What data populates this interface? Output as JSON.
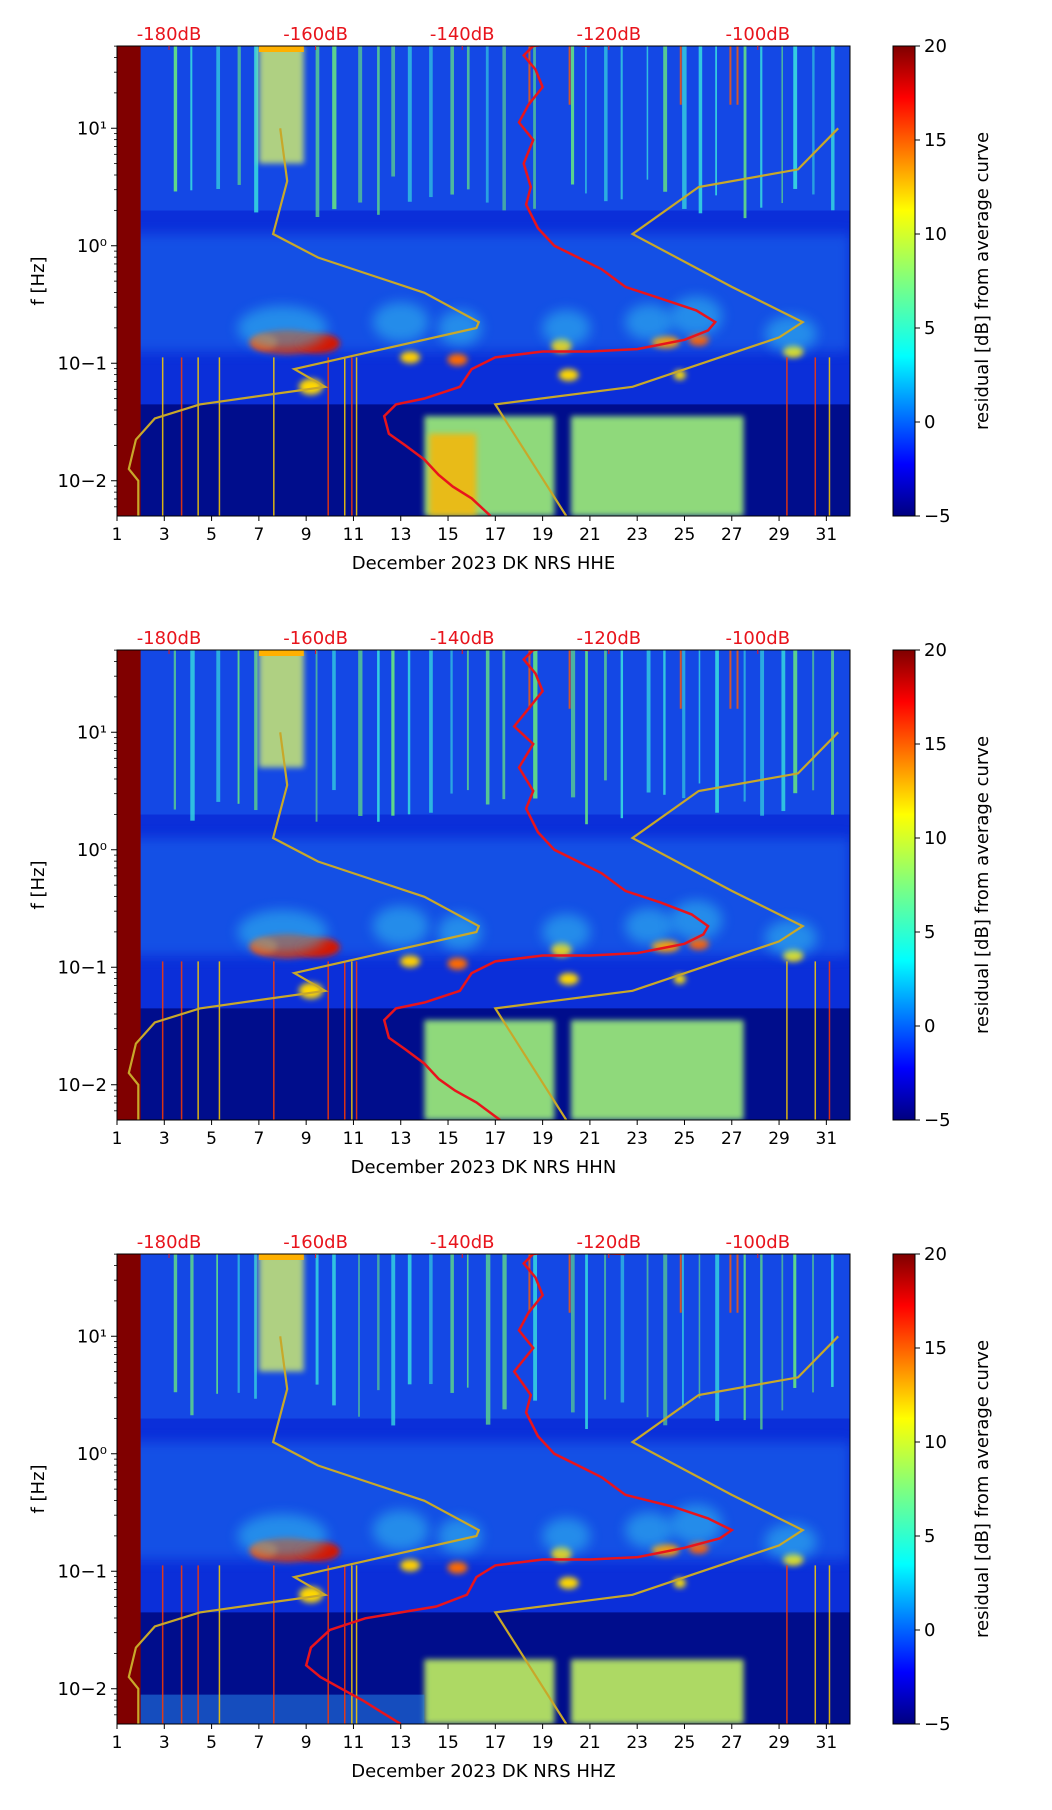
{
  "chart_data": [
    {
      "type": "heatmap",
      "channel": "HHE",
      "xlabel": "December 2023 DK NRS  HHE",
      "ylabel": "f [Hz]",
      "x_ticks": [
        "1",
        "3",
        "5",
        "7",
        "9",
        "11",
        "13",
        "15",
        "17",
        "19",
        "21",
        "23",
        "25",
        "27",
        "29",
        "31"
      ],
      "y_ticks": [
        "10−2",
        "10−1",
        "10⁰",
        "10¹"
      ],
      "top_axis_labels": [
        "-180dB",
        "-160dB",
        "-140dB",
        "-120dB",
        "-100dB"
      ],
      "colorbar": {
        "label": "residual [dB] from average curve",
        "ticks": [
          "−5",
          "0",
          "5",
          "10",
          "15",
          "20"
        ],
        "min": -5,
        "max": 20
      },
      "red_curve": [
        [
          16.8,
          -2.3
        ],
        [
          16,
          -2.15
        ],
        [
          15.2,
          -2.05
        ],
        [
          14.6,
          -1.95
        ],
        [
          14,
          -1.82
        ],
        [
          13.2,
          -1.7
        ],
        [
          12.5,
          -1.6
        ],
        [
          12.3,
          -1.45
        ],
        [
          12.8,
          -1.35
        ],
        [
          14,
          -1.3
        ],
        [
          15.5,
          -1.2
        ],
        [
          16,
          -1.05
        ],
        [
          17,
          -0.95
        ],
        [
          19,
          -0.9
        ],
        [
          21,
          -0.9
        ],
        [
          23,
          -0.88
        ],
        [
          25,
          -0.8
        ],
        [
          26,
          -0.72
        ],
        [
          26.3,
          -0.65
        ],
        [
          25.5,
          -0.55
        ],
        [
          24,
          -0.45
        ],
        [
          22.5,
          -0.35
        ],
        [
          21.5,
          -0.2
        ],
        [
          20.5,
          -0.1
        ],
        [
          19.5,
          0
        ],
        [
          18.8,
          0.15
        ],
        [
          18.3,
          0.35
        ],
        [
          18.5,
          0.5
        ],
        [
          18.2,
          0.7
        ],
        [
          18.6,
          0.9
        ],
        [
          18,
          1.05
        ],
        [
          18.4,
          1.2
        ],
        [
          19,
          1.35
        ],
        [
          18.7,
          1.5
        ],
        [
          18.2,
          1.62
        ],
        [
          18.6,
          1.7
        ],
        [
          19.5,
          1.72
        ],
        [
          21,
          1.7
        ]
      ],
      "yellow_curve": [
        [
          1.9,
          -2.3
        ],
        [
          1.9,
          -2.0
        ],
        [
          1.5,
          -1.9
        ],
        [
          1.8,
          -1.65
        ],
        [
          2.6,
          -1.47
        ],
        [
          4.5,
          -1.35
        ],
        [
          9.8,
          -1.2
        ],
        [
          8.5,
          -1.05
        ],
        [
          16.2,
          -0.7
        ],
        [
          16.3,
          -0.65
        ],
        [
          14,
          -0.4
        ],
        [
          9.5,
          -0.1
        ],
        [
          7.6,
          0.1
        ],
        [
          8.2,
          0.55
        ],
        [
          7.9,
          1.0
        ],
        [
          20,
          -2.3
        ],
        [
          17,
          -1.35
        ],
        [
          22.8,
          -1.2
        ],
        [
          29,
          -0.78
        ],
        [
          30,
          -0.65
        ],
        [
          27,
          -0.35
        ],
        [
          22.8,
          0.1
        ],
        [
          25.6,
          0.5
        ],
        [
          29.8,
          0.65
        ],
        [
          31.5,
          1.0
        ]
      ]
    },
    {
      "type": "heatmap",
      "channel": "HHN",
      "xlabel": "December 2023 DK NRS  HHN",
      "ylabel": "f [Hz]",
      "x_ticks": [
        "1",
        "3",
        "5",
        "7",
        "9",
        "11",
        "13",
        "15",
        "17",
        "19",
        "21",
        "23",
        "25",
        "27",
        "29",
        "31"
      ],
      "y_ticks": [
        "10−2",
        "10−1",
        "10⁰",
        "10¹"
      ],
      "top_axis_labels": [
        "-180dB",
        "-160dB",
        "-140dB",
        "-120dB",
        "-100dB"
      ],
      "colorbar": {
        "label": "residual [dB] from average curve",
        "ticks": [
          "−5",
          "0",
          "5",
          "10",
          "15",
          "20"
        ],
        "min": -5,
        "max": 20
      },
      "red_curve": [
        [
          17.2,
          -2.3
        ],
        [
          16.2,
          -2.15
        ],
        [
          15.3,
          -2.05
        ],
        [
          14.6,
          -1.95
        ],
        [
          14,
          -1.82
        ],
        [
          13.2,
          -1.7
        ],
        [
          12.5,
          -1.6
        ],
        [
          12.3,
          -1.45
        ],
        [
          12.8,
          -1.35
        ],
        [
          14,
          -1.3
        ],
        [
          15.5,
          -1.2
        ],
        [
          16,
          -1.05
        ],
        [
          17,
          -0.95
        ],
        [
          19,
          -0.9
        ],
        [
          21,
          -0.9
        ],
        [
          23,
          -0.88
        ],
        [
          25,
          -0.8
        ],
        [
          25.8,
          -0.72
        ],
        [
          26,
          -0.65
        ],
        [
          25.3,
          -0.55
        ],
        [
          24,
          -0.45
        ],
        [
          22.5,
          -0.35
        ],
        [
          21.5,
          -0.2
        ],
        [
          20.5,
          -0.1
        ],
        [
          19.5,
          0
        ],
        [
          18.8,
          0.15
        ],
        [
          18.3,
          0.35
        ],
        [
          18.6,
          0.5
        ],
        [
          18,
          0.7
        ],
        [
          18.6,
          0.9
        ],
        [
          17.8,
          1.05
        ],
        [
          18.4,
          1.2
        ],
        [
          19,
          1.35
        ],
        [
          18.7,
          1.5
        ],
        [
          18.2,
          1.62
        ],
        [
          18.6,
          1.7
        ],
        [
          19.5,
          1.72
        ],
        [
          21,
          1.7
        ]
      ],
      "yellow_curve": [
        [
          1.9,
          -2.3
        ],
        [
          1.9,
          -2.0
        ],
        [
          1.5,
          -1.9
        ],
        [
          1.8,
          -1.65
        ],
        [
          2.6,
          -1.47
        ],
        [
          4.5,
          -1.35
        ],
        [
          9.8,
          -1.2
        ],
        [
          8.5,
          -1.05
        ],
        [
          16.2,
          -0.7
        ],
        [
          16.3,
          -0.65
        ],
        [
          14,
          -0.4
        ],
        [
          9.5,
          -0.1
        ],
        [
          7.6,
          0.1
        ],
        [
          8.2,
          0.55
        ],
        [
          7.9,
          1.0
        ],
        [
          20,
          -2.3
        ],
        [
          17,
          -1.35
        ],
        [
          22.8,
          -1.2
        ],
        [
          29,
          -0.78
        ],
        [
          30,
          -0.65
        ],
        [
          27,
          -0.35
        ],
        [
          22.8,
          0.1
        ],
        [
          25.6,
          0.5
        ],
        [
          29.8,
          0.65
        ],
        [
          31.5,
          1.0
        ]
      ]
    },
    {
      "type": "heatmap",
      "channel": "HHZ",
      "xlabel": "December 2023 DK NRS  HHZ",
      "ylabel": "f [Hz]",
      "x_ticks": [
        "1",
        "3",
        "5",
        "7",
        "9",
        "11",
        "13",
        "15",
        "17",
        "19",
        "21",
        "23",
        "25",
        "27",
        "29",
        "31"
      ],
      "y_ticks": [
        "10−2",
        "10−1",
        "10⁰",
        "10¹"
      ],
      "top_axis_labels": [
        "-180dB",
        "-160dB",
        "-140dB",
        "-120dB",
        "-100dB"
      ],
      "colorbar": {
        "label": "residual [dB] from average curve",
        "ticks": [
          "−5",
          "0",
          "5",
          "10",
          "15",
          "20"
        ],
        "min": -5,
        "max": 20
      },
      "red_curve": [
        [
          13,
          -2.3
        ],
        [
          12.2,
          -2.2
        ],
        [
          11.4,
          -2.1
        ],
        [
          10.5,
          -2.0
        ],
        [
          9.6,
          -1.9
        ],
        [
          9,
          -1.8
        ],
        [
          9.2,
          -1.65
        ],
        [
          10,
          -1.5
        ],
        [
          11.5,
          -1.4
        ],
        [
          14.5,
          -1.3
        ],
        [
          15.8,
          -1.2
        ],
        [
          16.2,
          -1.05
        ],
        [
          17,
          -0.95
        ],
        [
          19,
          -0.9
        ],
        [
          21,
          -0.9
        ],
        [
          23,
          -0.88
        ],
        [
          25,
          -0.8
        ],
        [
          26.5,
          -0.72
        ],
        [
          27,
          -0.65
        ],
        [
          26,
          -0.55
        ],
        [
          24.5,
          -0.45
        ],
        [
          22.5,
          -0.35
        ],
        [
          21.5,
          -0.2
        ],
        [
          20.5,
          -0.1
        ],
        [
          19.5,
          0
        ],
        [
          18.8,
          0.15
        ],
        [
          18.3,
          0.35
        ],
        [
          18.5,
          0.5
        ],
        [
          17.8,
          0.7
        ],
        [
          18.6,
          0.9
        ],
        [
          18,
          1.05
        ],
        [
          18.4,
          1.2
        ],
        [
          19,
          1.35
        ],
        [
          18.7,
          1.5
        ],
        [
          18.2,
          1.62
        ],
        [
          18.6,
          1.7
        ],
        [
          19.5,
          1.72
        ],
        [
          22.5,
          1.7
        ]
      ],
      "yellow_curve": [
        [
          1.9,
          -2.3
        ],
        [
          1.9,
          -2.0
        ],
        [
          1.5,
          -1.9
        ],
        [
          1.8,
          -1.65
        ],
        [
          2.6,
          -1.47
        ],
        [
          4.5,
          -1.35
        ],
        [
          9.8,
          -1.2
        ],
        [
          8.5,
          -1.05
        ],
        [
          16.2,
          -0.7
        ],
        [
          16.3,
          -0.65
        ],
        [
          14,
          -0.4
        ],
        [
          9.5,
          -0.1
        ],
        [
          7.6,
          0.1
        ],
        [
          8.2,
          0.55
        ],
        [
          7.9,
          1.0
        ],
        [
          20,
          -2.3
        ],
        [
          17,
          -1.35
        ],
        [
          22.8,
          -1.2
        ],
        [
          29,
          -0.78
        ],
        [
          30,
          -0.65
        ],
        [
          27,
          -0.35
        ],
        [
          22.8,
          0.1
        ],
        [
          25.6,
          0.5
        ],
        [
          29.8,
          0.65
        ],
        [
          31.5,
          1.0
        ]
      ]
    }
  ]
}
